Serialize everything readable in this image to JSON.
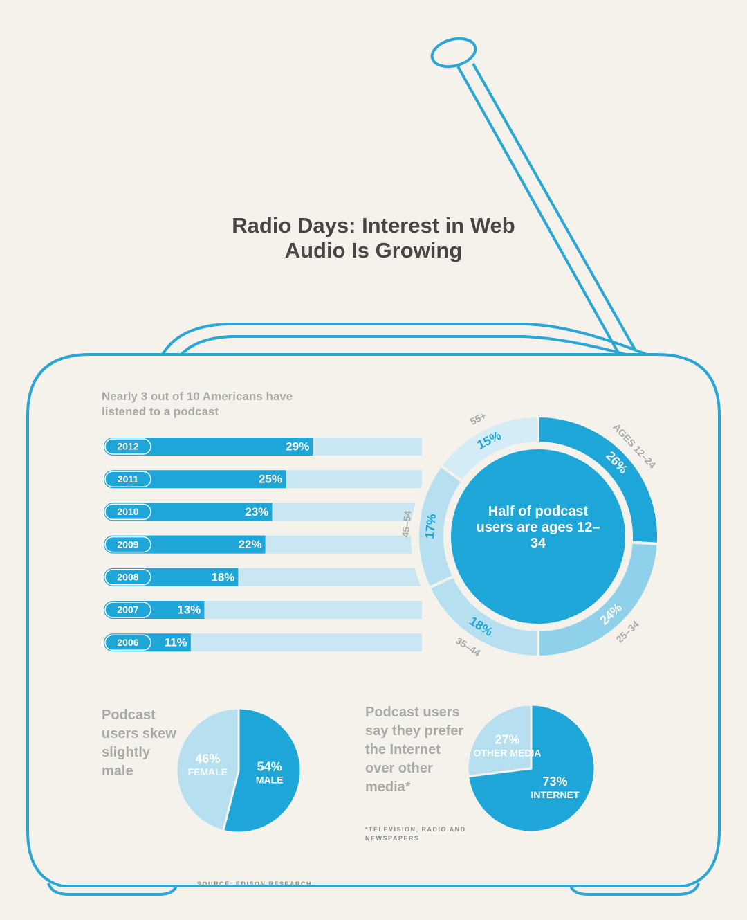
{
  "title": "Radio Days: Interest in Web Audio Is Growing",
  "source": "SOURCE: EDISON RESEARCH",
  "chart_data": [
    {
      "type": "bar",
      "title": "Nearly 3 out of 10 Americans have listened to a podcast",
      "categories": [
        "2012",
        "2011",
        "2010",
        "2009",
        "2008",
        "2007",
        "2006"
      ],
      "values": [
        29,
        25,
        23,
        22,
        18,
        13,
        11
      ],
      "value_labels": [
        "29%",
        "25%",
        "23%",
        "22%",
        "18%",
        "13%",
        "11%"
      ],
      "color": "#1ea6d8",
      "track_color": "#c8e7f3"
    },
    {
      "type": "donut",
      "annotation": "Half of podcast users are ages 12–34",
      "categories": [
        "AGES 12–24",
        "25–34",
        "35–44",
        "45–54",
        "55+"
      ],
      "values": [
        26,
        24,
        18,
        17,
        15
      ],
      "value_labels": [
        "26%",
        "24%",
        "18%",
        "17%",
        "15%"
      ],
      "colors": [
        "#1ea6d8",
        "#8fd0ea",
        "#b6e0f0",
        "#b6e0f0",
        "#d4ecf5"
      ]
    },
    {
      "type": "pie",
      "title": "Podcast users skew slightly male",
      "categories": [
        "MALE",
        "FEMALE"
      ],
      "values": [
        54,
        46
      ],
      "value_labels": [
        "54%",
        "46%"
      ],
      "colors": [
        "#1ea6d8",
        "#b6e0f0"
      ]
    },
    {
      "type": "pie",
      "title": "Podcast users say they prefer the Internet over other media*",
      "note": "*TELEVISION, RADIO AND NEWSPAPERS",
      "categories": [
        "INTERNET",
        "OTHER MEDIA"
      ],
      "values": [
        73,
        27
      ],
      "value_labels": [
        "73%",
        "27%"
      ],
      "colors": [
        "#1ea6d8",
        "#b6e0f0"
      ]
    }
  ]
}
